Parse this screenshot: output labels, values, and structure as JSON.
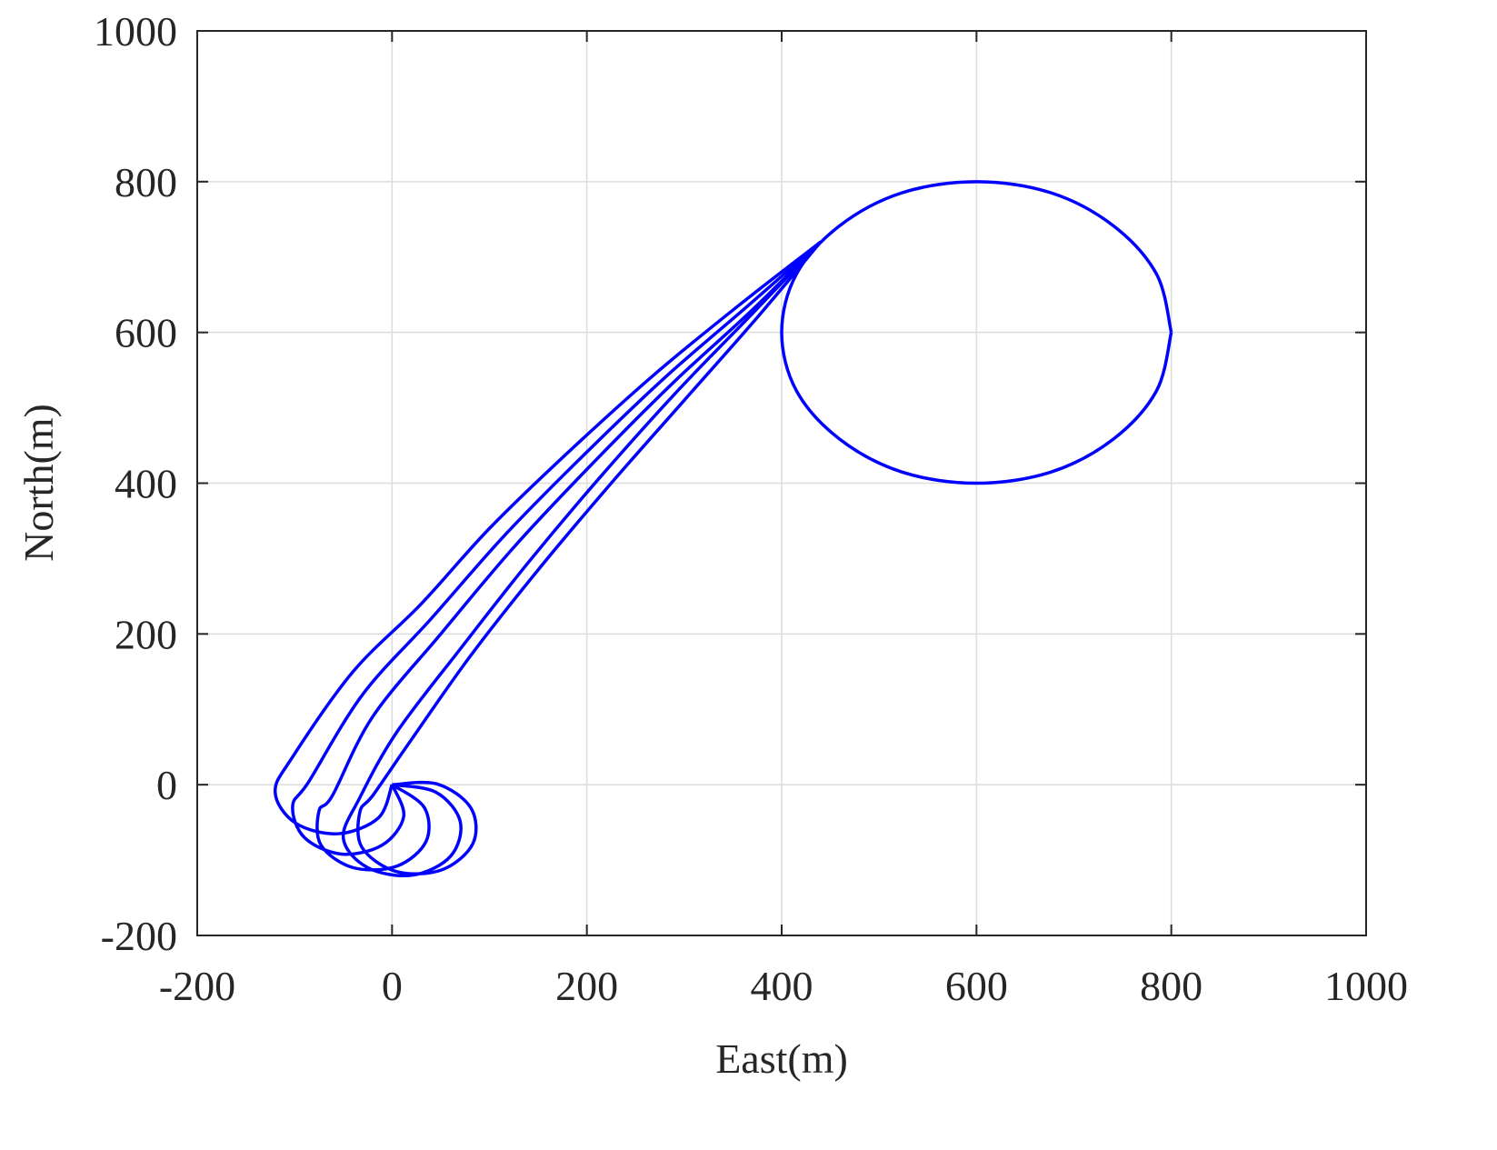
{
  "chart_data": {
    "type": "line",
    "xlabel": "East(m)",
    "ylabel": "North(m)",
    "xlim": [
      -200,
      1000
    ],
    "ylim": [
      -200,
      1000
    ],
    "xticks": [
      -200,
      0,
      200,
      400,
      600,
      800,
      1000
    ],
    "yticks": [
      -200,
      0,
      200,
      400,
      600,
      800,
      1000
    ],
    "grid": true,
    "series": [
      {
        "color": "#0000ff",
        "x": [
          0,
          -14,
          -55,
          -99,
          -120,
          -102,
          -40,
          30,
          100,
          180,
          270,
          360,
          440
        ],
        "y": [
          0,
          -44,
          -65,
          -51,
          -10,
          37,
          150,
          240,
          340,
          440,
          545,
          640,
          720
        ]
      },
      {
        "color": "#0000ff",
        "x": [
          0,
          12,
          -10,
          -52,
          -90,
          -102,
          -85,
          -30,
          40,
          115,
          195,
          280,
          365,
          440
        ],
        "y": [
          0,
          -42,
          -80,
          -92,
          -70,
          -28,
          5,
          120,
          220,
          330,
          435,
          540,
          635,
          720
        ]
      },
      {
        "color": "#0000ff",
        "x": [
          0,
          33,
          35,
          5,
          -40,
          -73,
          -75,
          -61,
          -20,
          50,
          125,
          205,
          290,
          370,
          440
        ],
        "y": [
          0,
          -30,
          -75,
          -108,
          -110,
          -80,
          -35,
          -14,
          90,
          200,
          315,
          425,
          535,
          630,
          720
        ]
      },
      {
        "color": "#0000ff",
        "x": [
          0,
          45,
          70,
          60,
          21,
          -25,
          -50,
          -33,
          5,
          70,
          140,
          215,
          295,
          370,
          440
        ],
        "y": [
          0,
          -10,
          -49,
          -95,
          -120,
          -110,
          -71,
          -17,
          70,
          180,
          295,
          410,
          525,
          625,
          720
        ]
      },
      {
        "color": "#0000ff",
        "x": [
          0,
          46,
          81,
          83,
          51,
          4,
          -31,
          -33,
          -19,
          20,
          80,
          150,
          225,
          300,
          375,
          440
        ],
        "y": [
          0,
          1,
          -31,
          -78,
          -113,
          -115,
          -83,
          -36,
          -13,
          60,
          170,
          285,
          400,
          510,
          620,
          720
        ]
      },
      {
        "color": "#0000ff",
        "x": [
          800,
          785,
          741,
          677,
          600,
          523,
          459,
          415,
          400,
          415,
          459,
          523,
          600,
          677,
          741,
          785,
          800
        ],
        "y": [
          600,
          677,
          741,
          785,
          800,
          785,
          741,
          677,
          600,
          523,
          459,
          415,
          400,
          415,
          459,
          523,
          600
        ]
      }
    ]
  }
}
